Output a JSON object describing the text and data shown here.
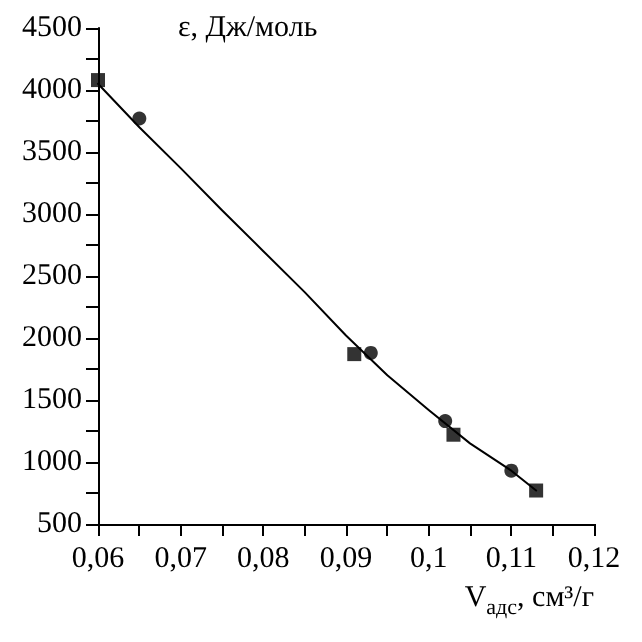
{
  "chart_data": {
    "type": "scatter",
    "xlabel": "V$_{адс}$, см³/г",
    "ylabel": "ε, Дж/моль",
    "series": [
      {
        "type": "scatter",
        "marker": "square",
        "color": "#000000",
        "x": [
          0.06,
          0.091,
          0.103,
          0.113
        ],
        "values": [
          4080,
          1870,
          1220,
          770
        ]
      },
      {
        "type": "scatter",
        "marker": "circle",
        "color": "#000000",
        "x": [
          0.065,
          0.093,
          0.102,
          0.11
        ],
        "values": [
          3770,
          1880,
          1330,
          930
        ]
      },
      {
        "type": "line",
        "marker": "none",
        "color": "#000000",
        "x": [
          0.06,
          0.065,
          0.07,
          0.075,
          0.08,
          0.085,
          0.09,
          0.095,
          0.1,
          0.105,
          0.11,
          0.113
        ],
        "values": [
          4050,
          3700,
          3370,
          3030,
          2700,
          2370,
          2020,
          1700,
          1420,
          1150,
          930,
          770
        ]
      }
    ],
    "xlim": [
      0.06,
      0.12
    ],
    "xticks": [
      {
        "value": 0.06,
        "label": "0,06"
      },
      {
        "value": 0.065,
        "label": null
      },
      {
        "value": 0.07,
        "label": "0,07"
      },
      {
        "value": 0.075,
        "label": null
      },
      {
        "value": 0.08,
        "label": "0,08"
      },
      {
        "value": 0.085,
        "label": null
      },
      {
        "value": 0.09,
        "label": "0,09"
      },
      {
        "value": 0.095,
        "label": null
      },
      {
        "value": 0.1,
        "label": "0,1"
      },
      {
        "value": 0.105,
        "label": null
      },
      {
        "value": 0.11,
        "label": "0,11"
      },
      {
        "value": 0.115,
        "label": null
      },
      {
        "value": 0.12,
        "label": "0,12"
      }
    ],
    "ylim": [
      500,
      4500
    ],
    "yticks": [
      500,
      {
        "value": 750,
        "label": null
      },
      1000,
      {
        "value": 1250,
        "label": null
      },
      1500,
      {
        "value": 1750,
        "label": null
      },
      2000,
      {
        "value": 2250,
        "label": null
      },
      2500,
      {
        "value": 2750,
        "label": null
      },
      3000,
      {
        "value": 3250,
        "label": null
      },
      3500,
      {
        "value": 3750,
        "label": null
      },
      4000,
      {
        "value": 4250,
        "label": null
      },
      4500
    ],
    "grid": false
  }
}
